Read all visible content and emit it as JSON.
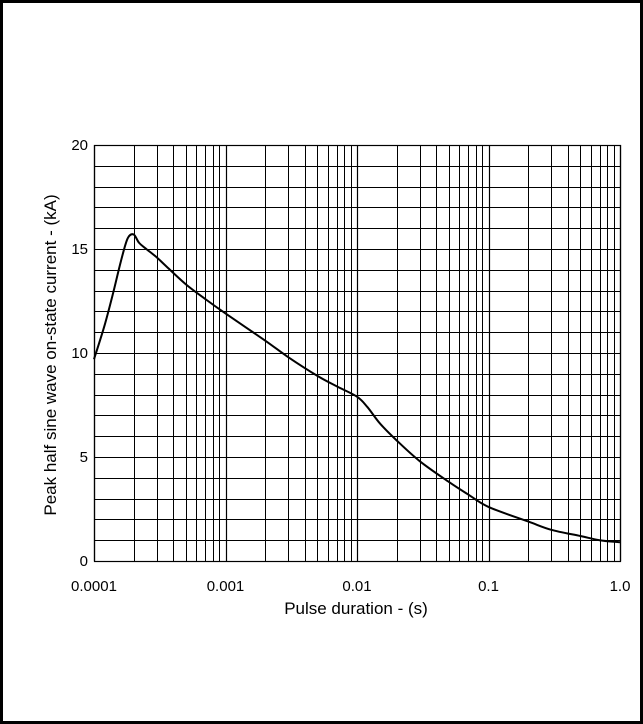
{
  "chart_data": {
    "type": "line",
    "xlabel": "Pulse duration - (s)",
    "ylabel": "Peak half sine wave on-state current  - (kA)",
    "x_scale": "log",
    "xlim": [
      0.0001,
      1.0
    ],
    "ylim": [
      0,
      20
    ],
    "x_tick_labels": [
      {
        "value": 0.0001,
        "label": "0.0001"
      },
      {
        "value": 0.001,
        "label": "0.001"
      },
      {
        "value": 0.01,
        "label": "0.01"
      },
      {
        "value": 0.1,
        "label": "0.1"
      },
      {
        "value": 1.0,
        "label": "1.0"
      }
    ],
    "y_tick_labels": [
      {
        "value": 0,
        "label": "0"
      },
      {
        "value": 5,
        "label": "5"
      },
      {
        "value": 10,
        "label": "10"
      },
      {
        "value": 15,
        "label": "15"
      },
      {
        "value": 20,
        "label": "20"
      }
    ],
    "y_minor_step": 1,
    "grid": true,
    "series": [
      {
        "x": [
          0.0001,
          0.00012,
          0.00014,
          0.00016,
          0.00018,
          0.0002,
          0.00022,
          0.00025,
          0.0003,
          0.00035,
          0.0005,
          0.0007,
          0.001,
          0.002,
          0.003,
          0.005,
          0.007,
          0.01,
          0.012,
          0.015,
          0.02,
          0.03,
          0.05,
          0.07,
          0.1,
          0.2,
          0.3,
          0.5,
          0.7,
          1.0
        ],
        "y": [
          9.7,
          11.3,
          12.9,
          14.4,
          15.5,
          15.7,
          15.3,
          15.0,
          14.6,
          14.2,
          13.3,
          12.6,
          11.9,
          10.6,
          9.8,
          8.9,
          8.4,
          7.9,
          7.4,
          6.6,
          5.8,
          4.8,
          3.8,
          3.2,
          2.6,
          1.9,
          1.5,
          1.2,
          1.0,
          0.9
        ]
      }
    ],
    "colors": {
      "line": "#000000",
      "grid": "#000000",
      "background": "#ffffff"
    }
  }
}
